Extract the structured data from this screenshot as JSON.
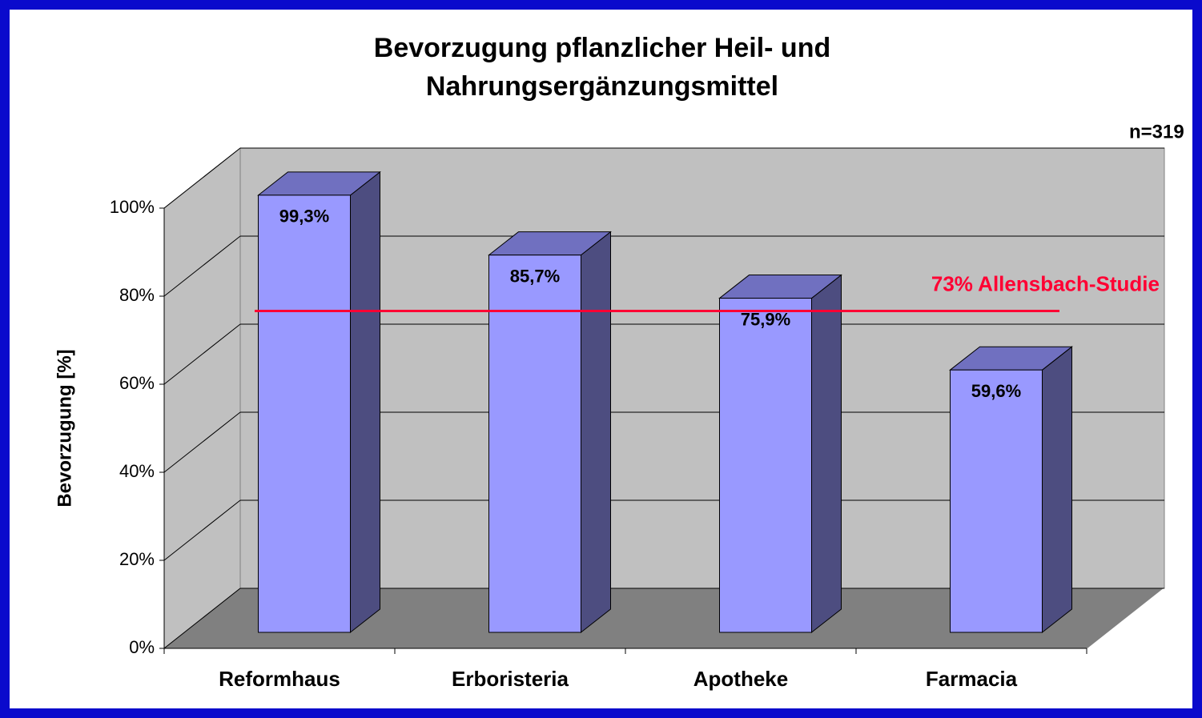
{
  "chart_data": {
    "type": "bar3d",
    "title": [
      "Bevorzugung pflanzlicher Heil- und",
      "Nahrungsergänzungsmittel"
    ],
    "note": "n=319",
    "ylabel": "Bevorzugung [%]",
    "categories": [
      "Reformhaus",
      "Erboristeria",
      "Apotheke",
      "Farmacia"
    ],
    "values": [
      99.3,
      85.7,
      75.9,
      59.6
    ],
    "value_labels": [
      "99,3%",
      "85,7%",
      "75,9%",
      "59,6%"
    ],
    "color": "#9999ff",
    "ylim": [
      0,
      100
    ],
    "yticks": [
      {
        "value": 0,
        "label": "0%"
      },
      {
        "value": 20,
        "label": "20%"
      },
      {
        "value": 40,
        "label": "40%"
      },
      {
        "value": 60,
        "label": "60%"
      },
      {
        "value": 80,
        "label": "80%"
      },
      {
        "value": 100,
        "label": "100%"
      }
    ],
    "grid": true,
    "reference_line": {
      "value": 73,
      "label": "73% Allensbach-Studie",
      "color": "#ff0033"
    }
  }
}
